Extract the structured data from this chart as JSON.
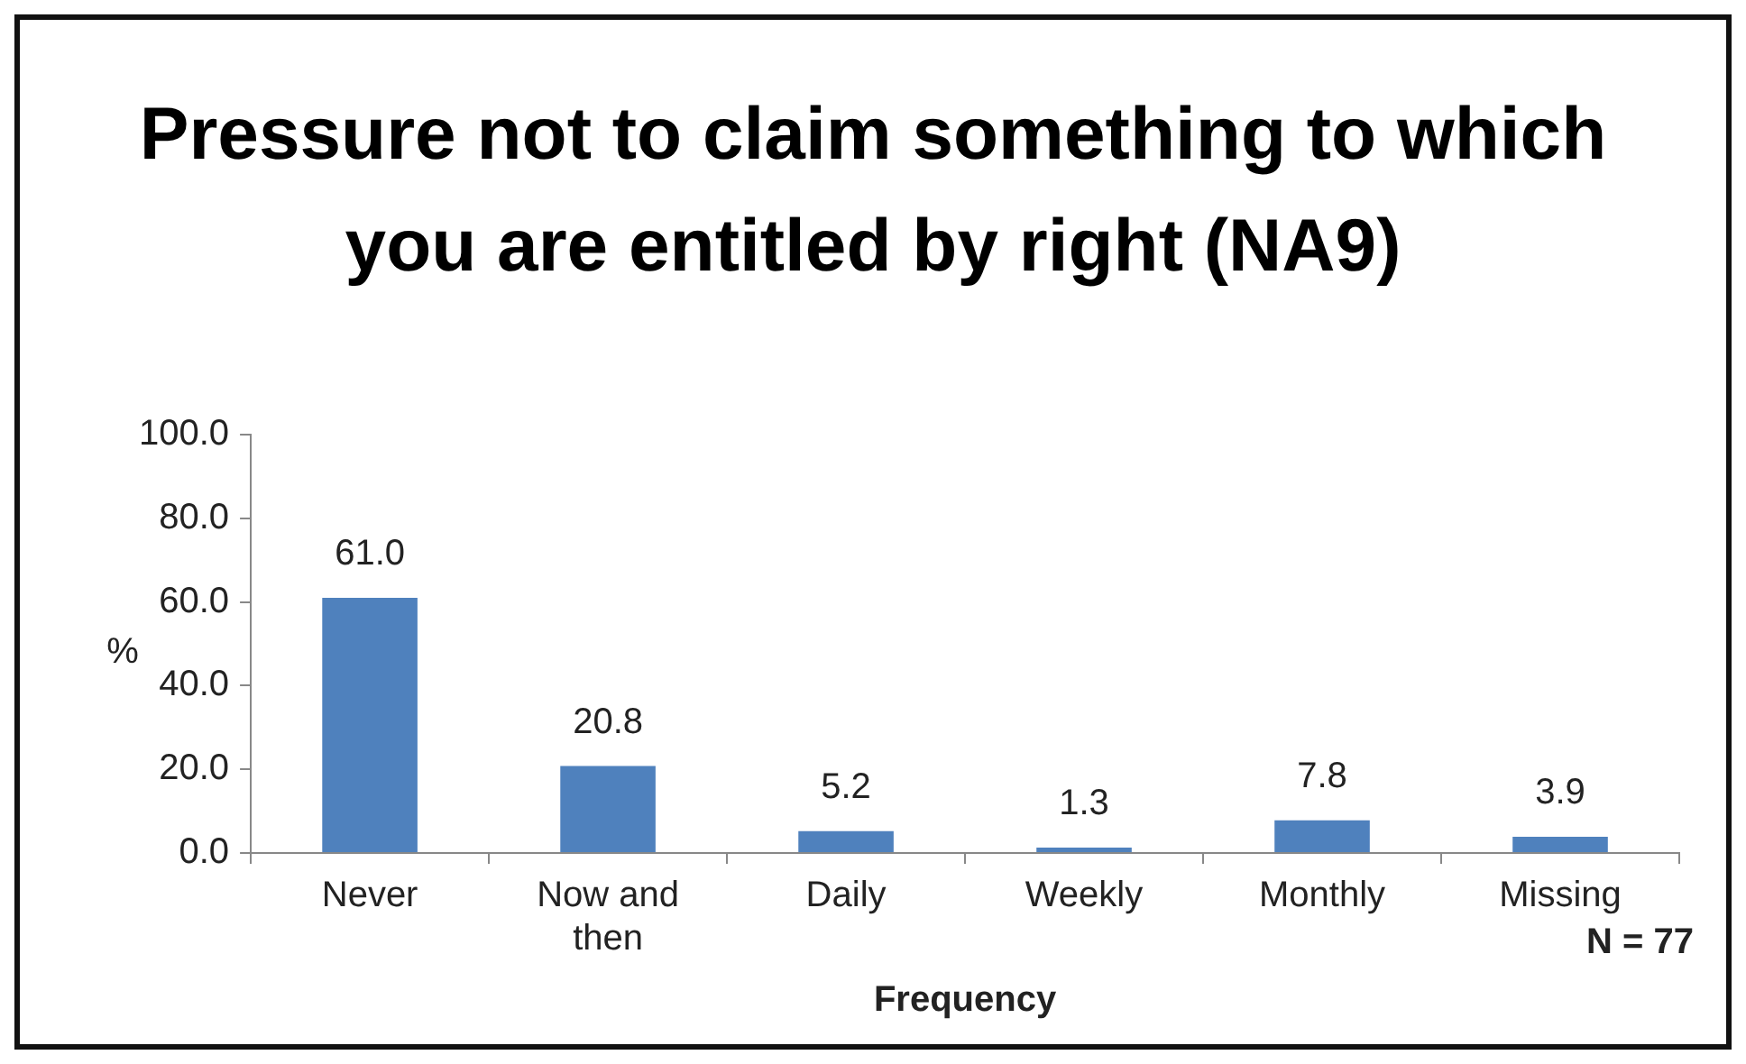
{
  "chart_data": {
    "type": "bar",
    "title": "Pressure not to claim something to which you are entitled by right (NA9)",
    "xlabel": "Frequency",
    "ylabel": "%",
    "categories": [
      "Never",
      "Now and then",
      "Daily",
      "Weekly",
      "Monthly",
      "Missing"
    ],
    "values": [
      61.0,
      20.8,
      5.2,
      1.3,
      7.8,
      3.9
    ],
    "value_labels": [
      "61.0",
      "20.8",
      "5.2",
      "1.3",
      "7.8",
      "3.9"
    ],
    "color": "#4f81bd",
    "ylim": [
      0,
      100
    ],
    "yticks": [
      {
        "value": 0,
        "label": "0.0"
      },
      {
        "value": 20,
        "label": "20.0"
      },
      {
        "value": 40,
        "label": "40.0"
      },
      {
        "value": 60,
        "label": "60.0"
      },
      {
        "value": 80,
        "label": "80.0"
      },
      {
        "value": 100,
        "label": "100.0"
      }
    ],
    "grid": false,
    "legend": false,
    "annotations": [
      "N = 77"
    ]
  }
}
